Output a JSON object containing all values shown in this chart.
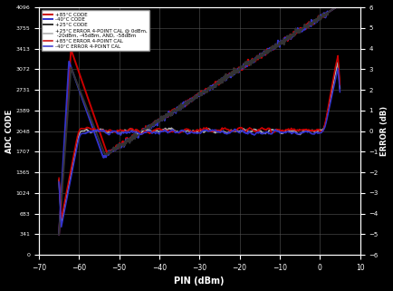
{
  "xlabel": "PIN (dBm)",
  "ylabel_left": "ADC CODE",
  "ylabel_right": "ERROR (dB)",
  "xlim": [
    -70,
    10
  ],
  "ylim_left": [
    0,
    4096
  ],
  "ylim_right": [
    -6,
    6
  ],
  "x_ticks": [
    -70,
    -60,
    -50,
    -40,
    -30,
    -20,
    -10,
    0,
    10
  ],
  "y_ticks_left": [
    0,
    341,
    683,
    1024,
    1365,
    1707,
    2048,
    2389,
    2731,
    3072,
    3413,
    3755,
    4096
  ],
  "y_ticks_right": [
    -6,
    -5,
    -4,
    -3,
    -2,
    -1,
    0,
    1,
    2,
    3,
    4,
    5,
    6
  ],
  "background_color": "#000000",
  "grid_color": "#555555",
  "legend_entries": [
    "+85°C CODE",
    "-40°C CODE",
    "+25°C CODE",
    "+25°C ERROR 4-POINT CAL @ 0dBm,\n  -20dBm, -45dBm, AND, -58dBm",
    "+85°C ERROR 4-POINT CAL",
    "-40°C ERROR 4-POINT CAL"
  ],
  "code_color_85": "#cc0000",
  "code_color_m40": "#3333cc",
  "code_color_25": "#333333",
  "err_color_25": "#000000",
  "err_color_85": "#cc0000",
  "err_color_m40": "#3333cc",
  "text_color": "#ffffff"
}
